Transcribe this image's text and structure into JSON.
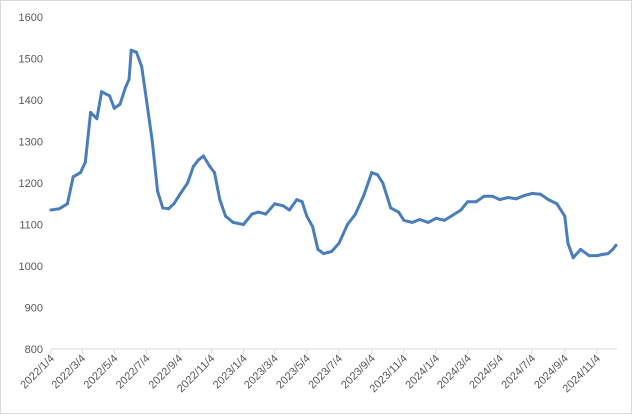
{
  "chart_data": {
    "type": "line",
    "title": "",
    "xlabel": "",
    "ylabel": "",
    "ylim": [
      800,
      1600
    ],
    "y_ticks": [
      800,
      900,
      1000,
      1100,
      1200,
      1300,
      1400,
      1500,
      1600
    ],
    "x_tick_labels": [
      "2022/1/4",
      "2022/3/4",
      "2022/5/4",
      "2022/7/4",
      "2022/9/4",
      "2022/11/4",
      "2023/1/4",
      "2023/3/4",
      "2023/5/4",
      "2023/7/4",
      "2023/9/4",
      "2023/11/4",
      "2024/1/4",
      "2024/3/4",
      "2024/5/4",
      "2024/7/4",
      "2024/9/4",
      "2024/11/4"
    ],
    "grid": false,
    "legend": "none",
    "line_color": "#4a7ebb",
    "series": [
      {
        "name": "",
        "x": [
          "2022/1/4",
          "2022/1/20",
          "2022/2/4",
          "2022/2/15",
          "2022/3/1",
          "2022/3/10",
          "2022/3/20",
          "2022/4/1",
          "2022/4/10",
          "2022/4/25",
          "2022/5/4",
          "2022/5/15",
          "2022/5/25",
          "2022/6/1",
          "2022/6/5",
          "2022/6/15",
          "2022/6/25",
          "2022/7/4",
          "2022/7/15",
          "2022/7/25",
          "2022/8/4",
          "2022/8/15",
          "2022/8/25",
          "2022/9/4",
          "2022/9/20",
          "2022/10/1",
          "2022/10/10",
          "2022/10/20",
          "2022/11/1",
          "2022/11/10",
          "2022/11/20",
          "2022/12/1",
          "2022/12/15",
          "2023/1/4",
          "2023/1/20",
          "2023/2/1",
          "2023/2/15",
          "2023/3/4",
          "2023/3/20",
          "2023/4/1",
          "2023/4/15",
          "2023/4/25",
          "2023/5/4",
          "2023/5/15",
          "2023/5/25",
          "2023/6/5",
          "2023/6/20",
          "2023/7/4",
          "2023/7/20",
          "2023/8/4",
          "2023/8/20",
          "2023/9/4",
          "2023/9/15",
          "2023/9/25",
          "2023/10/10",
          "2023/10/25",
          "2023/11/4",
          "2023/11/20",
          "2023/12/4",
          "2023/12/20",
          "2024/1/4",
          "2024/1/20",
          "2024/2/4",
          "2024/2/20",
          "2024/3/4",
          "2024/3/20",
          "2024/4/4",
          "2024/4/20",
          "2024/5/4",
          "2024/5/20",
          "2024/6/4",
          "2024/6/20",
          "2024/7/4",
          "2024/7/20",
          "2024/8/4",
          "2024/8/20",
          "2024/9/4",
          "2024/9/10",
          "2024/9/20",
          "2024/10/4",
          "2024/10/20",
          "2024/11/4",
          "2024/11/15",
          "2024/11/25",
          "2024/12/4",
          "2024/12/10"
        ],
        "values": [
          1135,
          1138,
          1150,
          1215,
          1225,
          1250,
          1370,
          1355,
          1420,
          1410,
          1380,
          1390,
          1430,
          1450,
          1520,
          1515,
          1480,
          1400,
          1300,
          1180,
          1140,
          1138,
          1150,
          1170,
          1200,
          1240,
          1255,
          1265,
          1240,
          1225,
          1160,
          1120,
          1105,
          1100,
          1125,
          1130,
          1125,
          1150,
          1145,
          1135,
          1160,
          1155,
          1120,
          1095,
          1040,
          1030,
          1035,
          1055,
          1100,
          1125,
          1170,
          1225,
          1220,
          1200,
          1140,
          1130,
          1110,
          1105,
          1112,
          1105,
          1115,
          1110,
          1122,
          1135,
          1155,
          1155,
          1168,
          1168,
          1160,
          1165,
          1162,
          1170,
          1175,
          1173,
          1160,
          1150,
          1120,
          1055,
          1020,
          1040,
          1025,
          1025,
          1028,
          1030,
          1040,
          1050
        ]
      }
    ]
  }
}
